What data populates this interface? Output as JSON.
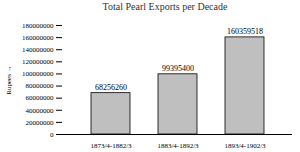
{
  "chart_data": {
    "type": "bar",
    "title": "Total Pearl Exports per Decade",
    "y_label": "Rupees",
    "categories": [
      "1873/4-1882/3",
      "1883/4-1892/3",
      "1893/4-1902/3"
    ],
    "values": [
      68256260,
      99395400,
      160359518
    ],
    "color": "#bfbfbf",
    "ylim": [
      0,
      180000000
    ],
    "yticks": [
      0,
      20000000,
      40000000,
      60000000,
      80000000,
      100000000,
      120000000,
      140000000,
      160000000,
      180000000
    ],
    "grid": false,
    "data_labels": true
  }
}
